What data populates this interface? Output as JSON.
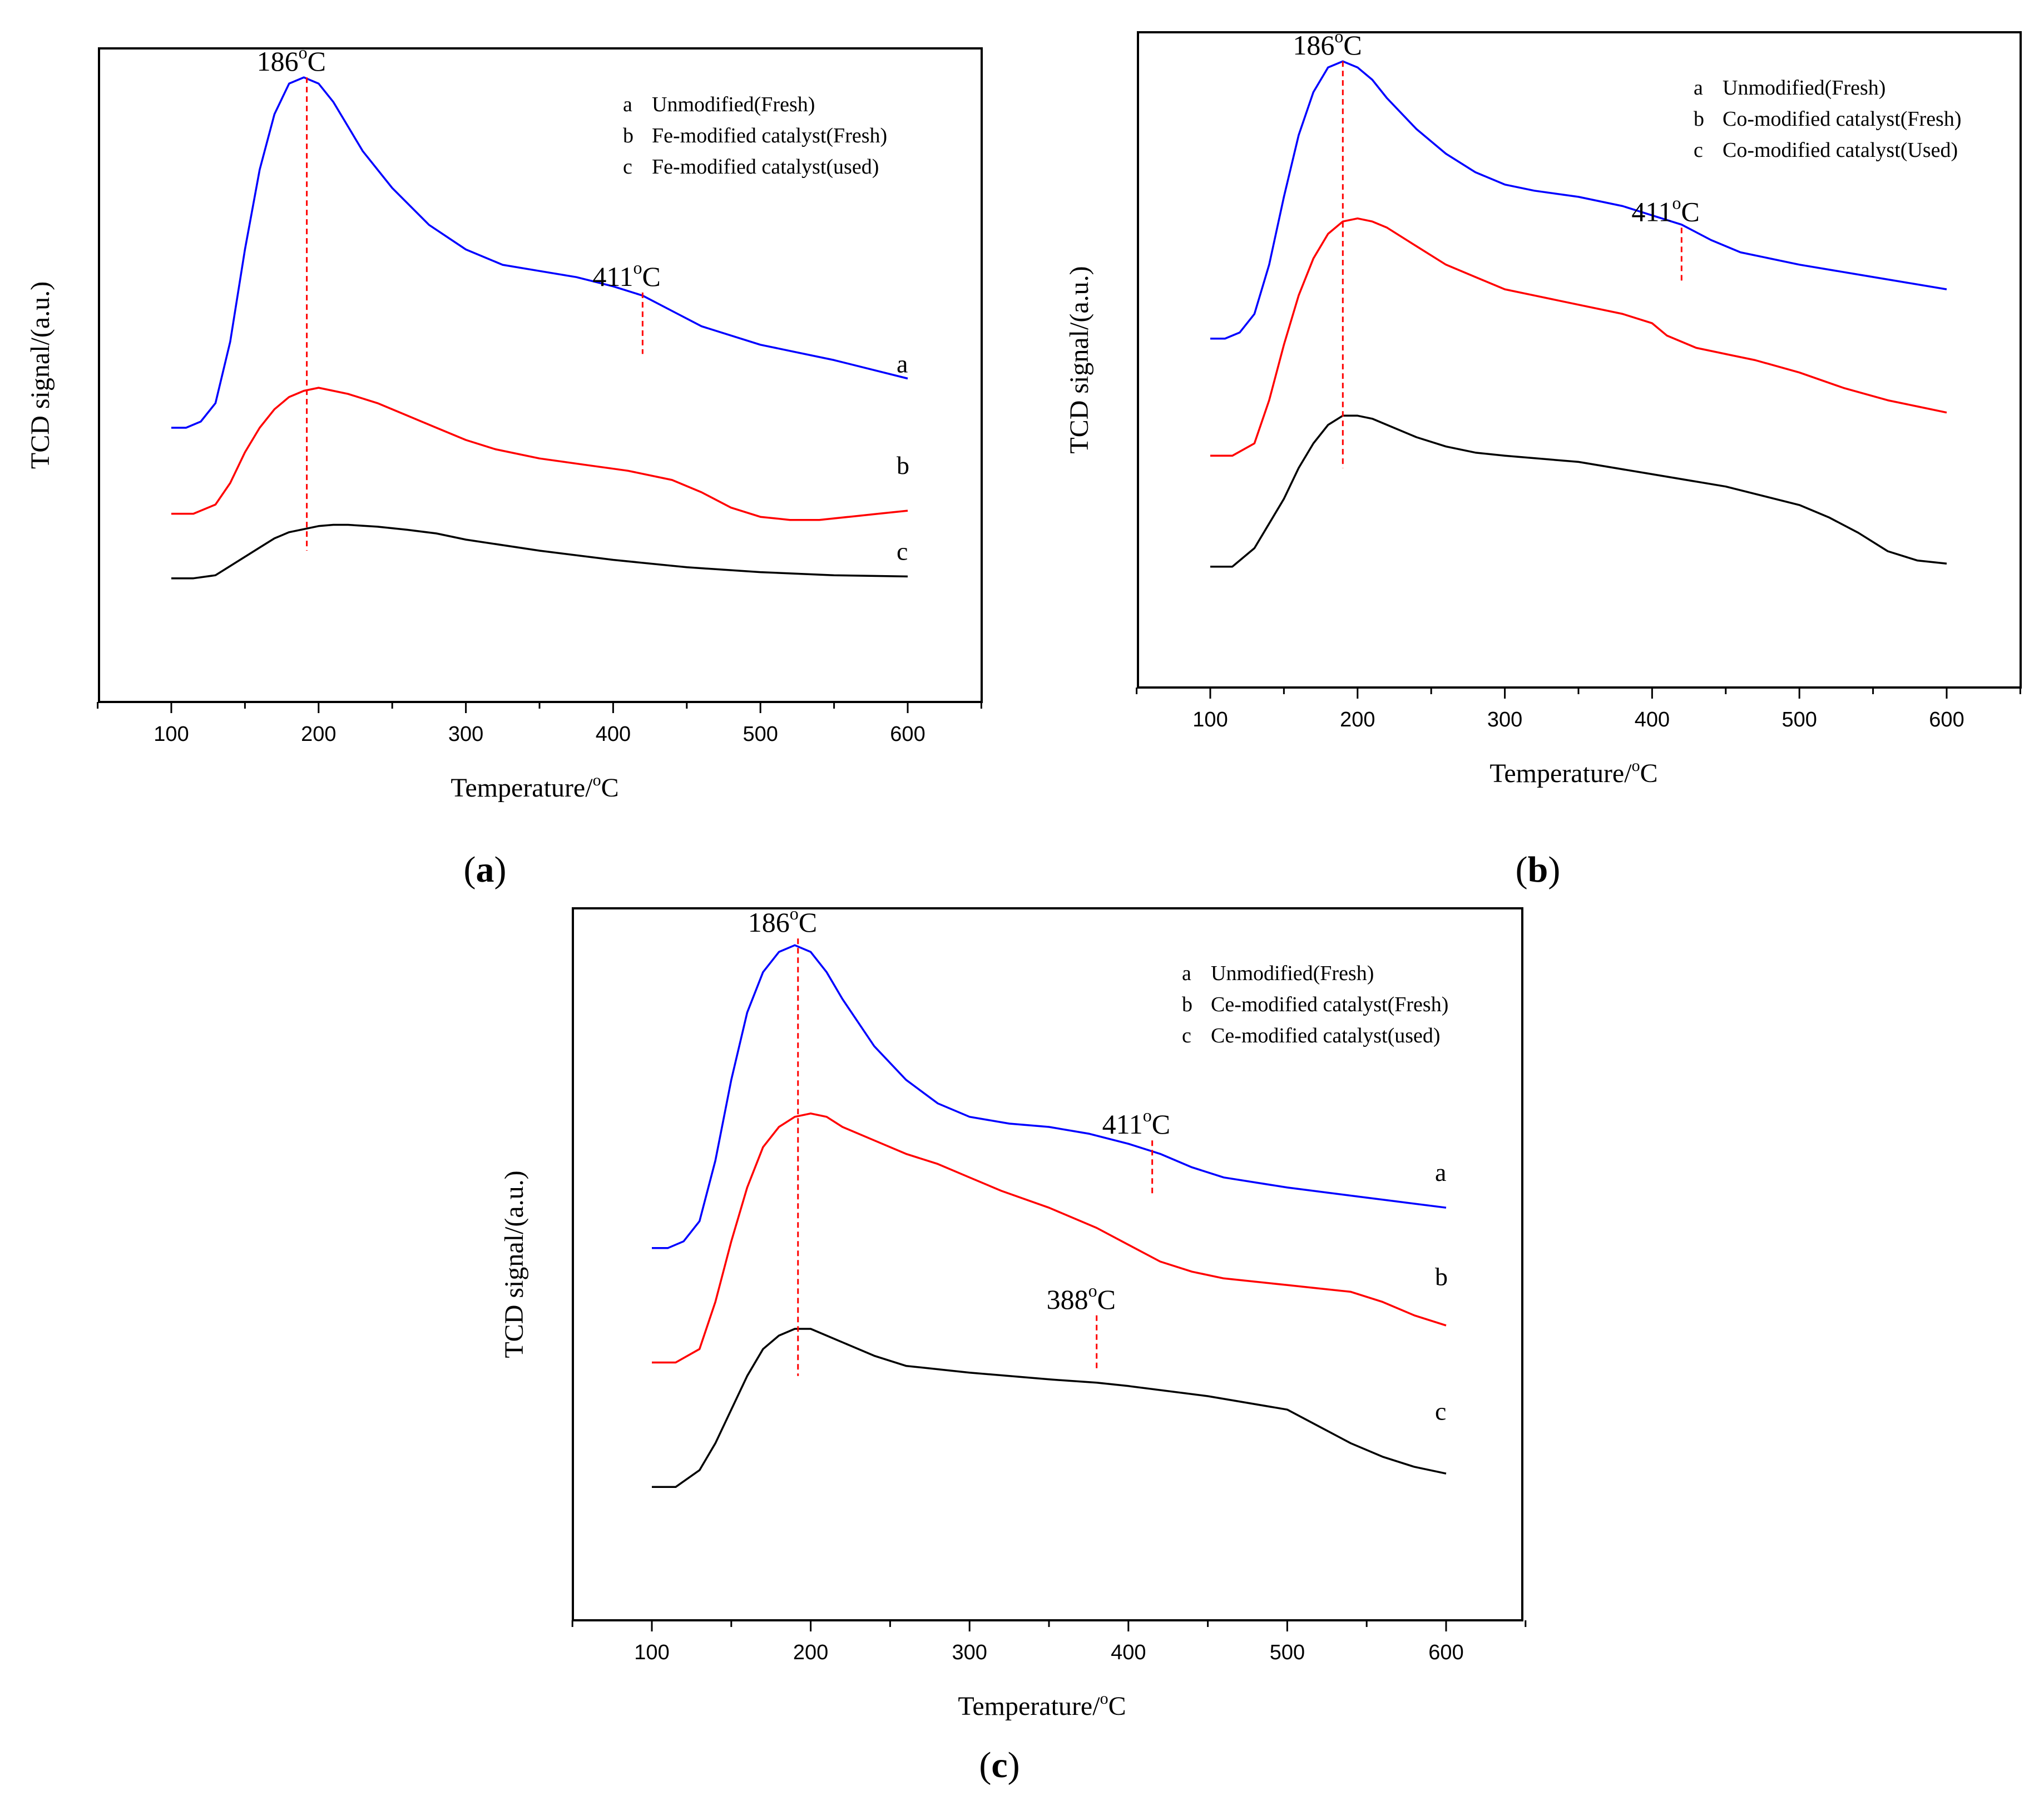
{
  "chart_data": [
    {
      "panel": "a",
      "type": "line",
      "panel_label": "a",
      "xlabel": "Temperature/",
      "xlabel_unit": "C",
      "xlabel_sup": "o",
      "ylabel": "TCD signal/(a.u.)",
      "xlim": [
        50,
        650
      ],
      "x_ticks": [
        100,
        200,
        300,
        400,
        500,
        600
      ],
      "legend": [
        {
          "key": "a",
          "text": "Unmodified(Fresh)"
        },
        {
          "key": "b",
          "text": "Fe-modified catalyst(Fresh)"
        },
        {
          "key": "c",
          "text": "Fe-modified catalyst(used)"
        }
      ],
      "annotations": [
        {
          "num": "186",
          "sup": "o",
          "unit": "C",
          "x": 192,
          "top": 0.98,
          "bottom": 0.21
        },
        {
          "num": "411",
          "sup": "o",
          "unit": "C",
          "x": 420,
          "top": 0.63,
          "bottom": 0.53
        }
      ],
      "series": [
        {
          "name": "a",
          "color": "#0000ff",
          "label_x": 600,
          "label_y": 0.5,
          "x": [
            100,
            110,
            120,
            130,
            140,
            150,
            160,
            170,
            180,
            190,
            200,
            210,
            220,
            230,
            250,
            275,
            300,
            325,
            350,
            375,
            400,
            420,
            440,
            460,
            500,
            550,
            600
          ],
          "y": [
            0.41,
            0.41,
            0.42,
            0.45,
            0.55,
            0.7,
            0.83,
            0.92,
            0.97,
            0.98,
            0.97,
            0.94,
            0.9,
            0.86,
            0.8,
            0.74,
            0.7,
            0.675,
            0.665,
            0.655,
            0.64,
            0.625,
            0.6,
            0.575,
            0.545,
            0.52,
            0.49
          ]
        },
        {
          "name": "b",
          "color": "#ff0000",
          "label_x": 600,
          "label_y": 0.335,
          "x": [
            100,
            115,
            130,
            140,
            150,
            160,
            170,
            180,
            190,
            200,
            210,
            220,
            240,
            260,
            280,
            300,
            320,
            350,
            380,
            410,
            440,
            460,
            480,
            500,
            520,
            540,
            560,
            580,
            600
          ],
          "y": [
            0.27,
            0.27,
            0.285,
            0.32,
            0.37,
            0.41,
            0.44,
            0.46,
            0.47,
            0.475,
            0.47,
            0.465,
            0.45,
            0.43,
            0.41,
            0.39,
            0.375,
            0.36,
            0.35,
            0.34,
            0.325,
            0.305,
            0.28,
            0.265,
            0.26,
            0.26,
            0.265,
            0.27,
            0.275
          ]
        },
        {
          "name": "c",
          "color": "#000000",
          "label_x": 600,
          "label_y": 0.195,
          "x": [
            100,
            115,
            130,
            140,
            150,
            160,
            170,
            180,
            190,
            200,
            210,
            220,
            240,
            260,
            280,
            300,
            350,
            400,
            450,
            500,
            550,
            600
          ],
          "y": [
            0.165,
            0.165,
            0.17,
            0.185,
            0.2,
            0.215,
            0.23,
            0.24,
            0.245,
            0.25,
            0.252,
            0.252,
            0.249,
            0.244,
            0.238,
            0.228,
            0.21,
            0.195,
            0.183,
            0.175,
            0.17,
            0.168
          ]
        }
      ]
    },
    {
      "panel": "b",
      "type": "line",
      "panel_label": "b",
      "xlabel": "Temperature/",
      "xlabel_unit": "C",
      "xlabel_sup": "o",
      "ylabel": "TCD signal/(a.u.)",
      "xlim": [
        50,
        650
      ],
      "x_ticks": [
        100,
        200,
        300,
        400,
        500,
        600
      ],
      "legend": [
        {
          "key": "a",
          "text": "Unmodified(Fresh)"
        },
        {
          "key": "b",
          "text": "Co-modified catalyst(Fresh)"
        },
        {
          "key": "c",
          "text": "Co-modified catalyst(Used)"
        }
      ],
      "annotations": [
        {
          "num": "186",
          "sup": "o",
          "unit": "C",
          "x": 190,
          "top": 0.98,
          "bottom": 0.32
        },
        {
          "num": "411",
          "sup": "o",
          "unit": "C",
          "x": 420,
          "top": 0.71,
          "bottom": 0.62
        }
      ],
      "series": [
        {
          "name": "a",
          "color": "#0000ff",
          "x": [
            100,
            110,
            120,
            130,
            140,
            150,
            160,
            170,
            180,
            190,
            200,
            210,
            220,
            240,
            260,
            280,
            300,
            320,
            350,
            380,
            400,
            420,
            440,
            460,
            500,
            550,
            600
          ],
          "y": [
            0.53,
            0.53,
            0.54,
            0.57,
            0.65,
            0.76,
            0.86,
            0.93,
            0.97,
            0.98,
            0.97,
            0.95,
            0.92,
            0.87,
            0.83,
            0.8,
            0.78,
            0.77,
            0.76,
            0.745,
            0.73,
            0.715,
            0.69,
            0.67,
            0.65,
            0.63,
            0.61
          ]
        },
        {
          "name": "b",
          "color": "#ff0000",
          "x": [
            100,
            115,
            130,
            140,
            150,
            160,
            170,
            180,
            190,
            200,
            210,
            220,
            240,
            260,
            280,
            300,
            320,
            350,
            380,
            400,
            410,
            430,
            450,
            470,
            500,
            530,
            560,
            580,
            600
          ],
          "y": [
            0.34,
            0.34,
            0.36,
            0.43,
            0.52,
            0.6,
            0.66,
            0.7,
            0.72,
            0.725,
            0.72,
            0.71,
            0.68,
            0.65,
            0.63,
            0.61,
            0.6,
            0.585,
            0.57,
            0.555,
            0.535,
            0.515,
            0.505,
            0.495,
            0.475,
            0.45,
            0.43,
            0.42,
            0.41
          ]
        },
        {
          "name": "c",
          "color": "#000000",
          "x": [
            100,
            115,
            130,
            140,
            150,
            160,
            170,
            180,
            190,
            200,
            210,
            220,
            240,
            260,
            280,
            300,
            350,
            400,
            450,
            500,
            520,
            540,
            560,
            580,
            600
          ],
          "y": [
            0.16,
            0.16,
            0.19,
            0.23,
            0.27,
            0.32,
            0.36,
            0.39,
            0.405,
            0.405,
            0.4,
            0.39,
            0.37,
            0.355,
            0.345,
            0.34,
            0.33,
            0.31,
            0.29,
            0.26,
            0.24,
            0.215,
            0.185,
            0.17,
            0.165
          ]
        }
      ]
    },
    {
      "panel": "c",
      "type": "line",
      "panel_label": "c",
      "xlabel": "Temperature/",
      "xlabel_unit": "C",
      "xlabel_sup": "o",
      "ylabel": "TCD signal/(a.u.)",
      "xlim": [
        50,
        650
      ],
      "x_ticks": [
        100,
        200,
        300,
        400,
        500,
        600
      ],
      "legend": [
        {
          "key": "a",
          "text": "Unmodified(Fresh)"
        },
        {
          "key": "b",
          "text": "Ce-modified catalyst(Fresh)"
        },
        {
          "key": "c",
          "text": "Ce-modified catalyst(used)"
        }
      ],
      "annotations": [
        {
          "num": "186",
          "sup": "o",
          "unit": "C",
          "x": 192,
          "top": 0.98,
          "bottom": 0.33
        },
        {
          "num": "411",
          "sup": "o",
          "unit": "C",
          "x": 415,
          "top": 0.68,
          "bottom": 0.6
        },
        {
          "num": "388",
          "sup": "o",
          "unit": "C",
          "x": 380,
          "top": 0.42,
          "bottom": 0.34
        }
      ],
      "series": [
        {
          "name": "a",
          "color": "#0000ff",
          "label_x": 600,
          "label_y": 0.62,
          "x": [
            100,
            110,
            120,
            130,
            140,
            150,
            160,
            170,
            180,
            190,
            200,
            210,
            220,
            240,
            260,
            280,
            300,
            325,
            350,
            375,
            400,
            420,
            440,
            460,
            500,
            550,
            600
          ],
          "y": [
            0.52,
            0.52,
            0.53,
            0.56,
            0.65,
            0.77,
            0.87,
            0.93,
            0.96,
            0.97,
            0.96,
            0.93,
            0.89,
            0.82,
            0.77,
            0.735,
            0.715,
            0.705,
            0.7,
            0.69,
            0.675,
            0.66,
            0.64,
            0.625,
            0.61,
            0.595,
            0.58
          ]
        },
        {
          "name": "b",
          "color": "#ff0000",
          "label_x": 600,
          "label_y": 0.465,
          "x": [
            100,
            115,
            130,
            140,
            150,
            160,
            170,
            180,
            190,
            200,
            210,
            220,
            240,
            260,
            280,
            300,
            320,
            350,
            380,
            400,
            420,
            440,
            460,
            480,
            500,
            520,
            540,
            560,
            580,
            600
          ],
          "y": [
            0.35,
            0.35,
            0.37,
            0.44,
            0.53,
            0.61,
            0.67,
            0.7,
            0.715,
            0.72,
            0.715,
            0.7,
            0.68,
            0.66,
            0.645,
            0.625,
            0.605,
            0.58,
            0.55,
            0.525,
            0.5,
            0.485,
            0.475,
            0.47,
            0.465,
            0.46,
            0.455,
            0.44,
            0.42,
            0.405
          ]
        },
        {
          "name": "c",
          "color": "#000000",
          "label_x": 600,
          "label_y": 0.265,
          "x": [
            100,
            115,
            130,
            140,
            150,
            160,
            170,
            180,
            190,
            200,
            210,
            220,
            240,
            260,
            280,
            300,
            350,
            380,
            400,
            450,
            500,
            520,
            540,
            560,
            580,
            600
          ],
          "y": [
            0.165,
            0.165,
            0.19,
            0.23,
            0.28,
            0.33,
            0.37,
            0.39,
            0.4,
            0.4,
            0.39,
            0.38,
            0.36,
            0.345,
            0.34,
            0.335,
            0.325,
            0.32,
            0.315,
            0.3,
            0.28,
            0.255,
            0.23,
            0.21,
            0.195,
            0.185
          ]
        }
      ]
    }
  ]
}
